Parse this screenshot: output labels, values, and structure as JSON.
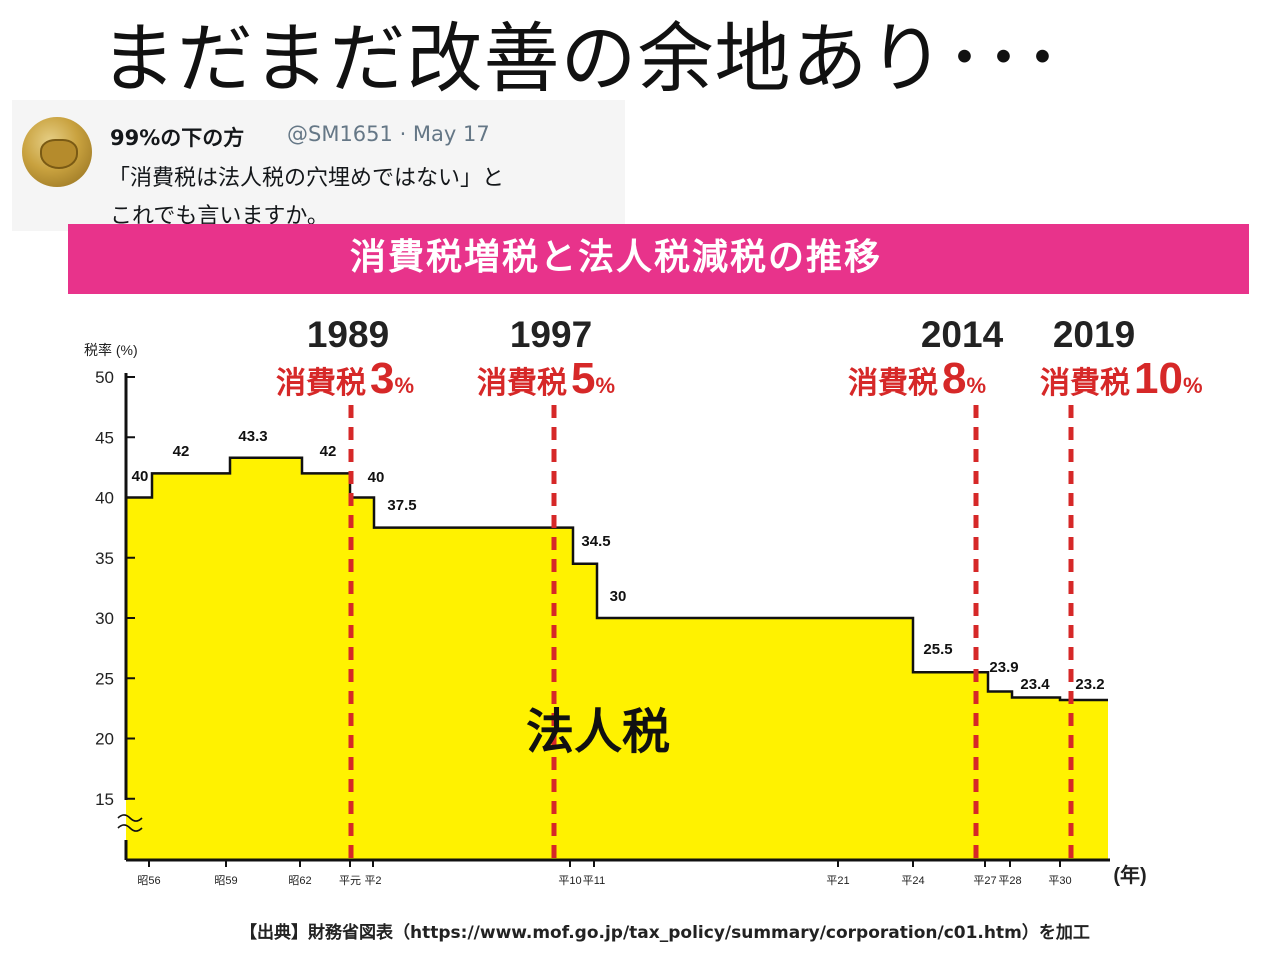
{
  "slide_title": "まだまだ改善の余地あり･･･",
  "tweet": {
    "name": "99%の下の方",
    "handle_date": "@SM1651 · May 17",
    "line1": "「消費税は法人税の穴埋めではない」と",
    "line2": "これでも言いますか。"
  },
  "banner": "消費税増税と法人税減税の推移",
  "source": "【出典】財務省図表（https://www.mof.go.jp/tax_policy/summary/corporation/c01.htm）を加工",
  "chart_data": {
    "type": "area",
    "ylabel": "税率 (%)",
    "xunit": "(年)",
    "ylim": [
      10,
      50
    ],
    "yticks": [
      15,
      20,
      25,
      30,
      35,
      40,
      45,
      50
    ],
    "grid": false,
    "fill_color": "#fff200",
    "line_color": "#111111",
    "marker_color": "#d62828",
    "center_label": "法人税",
    "x_ticks": [
      "昭56",
      "昭59",
      "昭62",
      "平元",
      "平2",
      "平10",
      "平11",
      "平21",
      "平24",
      "平27",
      "平28",
      "平30"
    ],
    "series": [
      {
        "steps": [
          {
            "from": "昭56",
            "value": 40
          },
          {
            "from": "昭56",
            "value": 42
          },
          {
            "from": "昭59",
            "value": 43.3
          },
          {
            "from": "昭62",
            "value": 42
          },
          {
            "from": "平元",
            "value": 40
          },
          {
            "from": "平2",
            "value": 37.5
          },
          {
            "from": "平10",
            "value": 34.5
          },
          {
            "from": "平11",
            "value": 30
          },
          {
            "from": "平24",
            "value": 25.5
          },
          {
            "from": "平27",
            "value": 23.9
          },
          {
            "from": "平28",
            "value": 23.4
          },
          {
            "from": "平30",
            "value": 23.2
          }
        ]
      }
    ],
    "events": [
      {
        "year": "1989",
        "label": "消費税",
        "rate": "3",
        "unit": "%"
      },
      {
        "year": "1997",
        "label": "消費税",
        "rate": "5",
        "unit": "%"
      },
      {
        "year": "2014",
        "label": "消費税",
        "rate": "8",
        "unit": "%"
      },
      {
        "year": "2019",
        "label": "消費税",
        "rate": "10",
        "unit": "%"
      }
    ]
  }
}
